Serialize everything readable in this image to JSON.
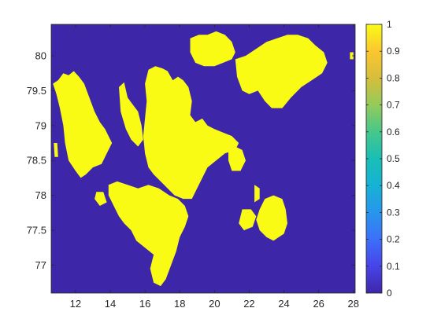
{
  "chart_data": {
    "type": "heatmap",
    "title": "",
    "xlabel": "",
    "ylabel": "",
    "xlim": [
      10.6,
      28.1
    ],
    "ylim": [
      76.6,
      80.45
    ],
    "x_ticks": [
      12,
      14,
      16,
      18,
      20,
      22,
      24,
      26,
      28
    ],
    "x_tick_labels": [
      "12",
      "14",
      "16",
      "18",
      "20",
      "22",
      "24",
      "26",
      "28"
    ],
    "y_ticks": [
      77,
      77.5,
      78,
      78.5,
      79,
      79.5,
      80
    ],
    "y_tick_labels": [
      "77",
      "77.5",
      "78",
      "78.5",
      "79",
      "79.5",
      "80"
    ],
    "colorbar": {
      "range": [
        0,
        1
      ],
      "ticks": [
        0,
        0.1,
        0.2,
        0.3,
        0.4,
        0.5,
        0.6,
        0.7,
        0.8,
        0.9,
        1
      ],
      "tick_labels": [
        "0",
        "0.1",
        "0.2",
        "0.3",
        "0.4",
        "0.5",
        "0.6",
        "0.7",
        "0.8",
        "0.9",
        "1"
      ],
      "colormap": "parula",
      "colormap_stops": [
        "#3e26a8",
        "#4744e8",
        "#3d6ff9",
        "#2796eb",
        "#16b2d5",
        "#18bfb5",
        "#47c78a",
        "#94ca5a",
        "#d6be3b",
        "#fbc630",
        "#f9fb15"
      ]
    },
    "value_colors": {
      "0": "#3e26a8",
      "1": "#f9fb15"
    },
    "grid": false,
    "legend": "none",
    "land_regions": [
      {
        "name": "",
        "value": 1,
        "lonlat": [
          [
            10.7,
            79.6
          ],
          [
            11.0,
            79.65
          ],
          [
            11.3,
            79.75
          ],
          [
            11.6,
            79.72
          ],
          [
            11.9,
            79.78
          ],
          [
            12.2,
            79.7
          ],
          [
            12.5,
            79.6
          ],
          [
            12.8,
            79.4
          ],
          [
            13.1,
            79.2
          ],
          [
            13.4,
            79.05
          ],
          [
            13.7,
            78.95
          ],
          [
            13.9,
            78.85
          ],
          [
            14.1,
            78.75
          ],
          [
            13.8,
            78.6
          ],
          [
            13.5,
            78.45
          ],
          [
            13.0,
            78.4
          ],
          [
            12.6,
            78.3
          ],
          [
            12.3,
            78.25
          ],
          [
            12.0,
            78.35
          ],
          [
            11.6,
            78.5
          ],
          [
            11.4,
            78.75
          ],
          [
            11.3,
            79.0
          ],
          [
            11.1,
            79.25
          ],
          [
            10.9,
            79.45
          ]
        ]
      },
      {
        "name": "",
        "value": 1,
        "lonlat": [
          [
            14.5,
            79.55
          ],
          [
            14.8,
            79.62
          ],
          [
            15.0,
            79.4
          ],
          [
            15.3,
            79.3
          ],
          [
            15.6,
            79.2
          ],
          [
            15.8,
            79.0
          ],
          [
            15.9,
            78.8
          ],
          [
            15.6,
            78.7
          ],
          [
            15.2,
            78.8
          ],
          [
            14.9,
            78.95
          ],
          [
            14.6,
            79.2
          ]
        ]
      },
      {
        "name": "",
        "value": 1,
        "lonlat": [
          [
            16.2,
            79.8
          ],
          [
            16.6,
            79.85
          ],
          [
            17.0,
            79.82
          ],
          [
            17.3,
            79.78
          ],
          [
            17.6,
            79.65
          ],
          [
            17.9,
            79.7
          ],
          [
            18.2,
            79.65
          ],
          [
            18.5,
            79.55
          ],
          [
            18.7,
            79.35
          ],
          [
            18.6,
            79.15
          ],
          [
            18.9,
            79.05
          ],
          [
            19.3,
            79.1
          ],
          [
            19.6,
            79.0
          ],
          [
            20.0,
            78.95
          ],
          [
            20.5,
            78.9
          ],
          [
            21.0,
            78.85
          ],
          [
            21.4,
            78.75
          ],
          [
            21.2,
            78.65
          ],
          [
            20.6,
            78.6
          ],
          [
            20.1,
            78.5
          ],
          [
            19.6,
            78.4
          ],
          [
            19.3,
            78.25
          ],
          [
            19.0,
            78.1
          ],
          [
            18.7,
            77.95
          ],
          [
            18.2,
            77.95
          ],
          [
            17.7,
            78.0
          ],
          [
            17.3,
            78.1
          ],
          [
            16.9,
            78.2
          ],
          [
            16.5,
            78.3
          ],
          [
            16.2,
            78.4
          ],
          [
            16.0,
            78.6
          ],
          [
            15.9,
            78.85
          ],
          [
            16.0,
            79.1
          ],
          [
            16.1,
            79.35
          ],
          [
            16.0,
            79.6
          ]
        ]
      },
      {
        "name": "",
        "value": 1,
        "lonlat": [
          [
            13.9,
            78.15
          ],
          [
            14.4,
            78.2
          ],
          [
            15.0,
            78.15
          ],
          [
            15.6,
            78.1
          ],
          [
            16.2,
            78.15
          ],
          [
            16.8,
            78.1
          ],
          [
            17.4,
            78.0
          ],
          [
            17.9,
            77.95
          ],
          [
            18.3,
            77.85
          ],
          [
            18.5,
            77.7
          ],
          [
            18.3,
            77.55
          ],
          [
            18.0,
            77.4
          ],
          [
            17.8,
            77.2
          ],
          [
            17.5,
            77.0
          ],
          [
            17.2,
            76.8
          ],
          [
            16.9,
            76.7
          ],
          [
            16.5,
            76.75
          ],
          [
            16.3,
            76.95
          ],
          [
            16.5,
            77.15
          ],
          [
            16.0,
            77.25
          ],
          [
            15.5,
            77.35
          ],
          [
            15.2,
            77.5
          ],
          [
            14.8,
            77.6
          ],
          [
            14.5,
            77.7
          ],
          [
            14.2,
            77.85
          ],
          [
            13.9,
            78.0
          ]
        ]
      },
      {
        "name": "",
        "value": 1,
        "lonlat": [
          [
            18.6,
            80.25
          ],
          [
            19.1,
            80.3
          ],
          [
            19.6,
            80.3
          ],
          [
            20.1,
            80.35
          ],
          [
            20.6,
            80.3
          ],
          [
            21.0,
            80.2
          ],
          [
            21.2,
            80.05
          ],
          [
            21.0,
            79.95
          ],
          [
            20.5,
            79.9
          ],
          [
            20.0,
            79.85
          ],
          [
            19.4,
            79.85
          ],
          [
            18.9,
            79.9
          ],
          [
            18.6,
            80.05
          ]
        ]
      },
      {
        "name": "",
        "value": 1,
        "lonlat": [
          [
            21.2,
            79.95
          ],
          [
            21.8,
            80.0
          ],
          [
            22.4,
            80.1
          ],
          [
            23.0,
            80.2
          ],
          [
            23.6,
            80.25
          ],
          [
            24.2,
            80.3
          ],
          [
            24.8,
            80.3
          ],
          [
            25.4,
            80.25
          ],
          [
            25.8,
            80.15
          ],
          [
            26.3,
            80.05
          ],
          [
            26.5,
            79.9
          ],
          [
            26.2,
            79.75
          ],
          [
            25.6,
            79.65
          ],
          [
            25.0,
            79.55
          ],
          [
            24.4,
            79.4
          ],
          [
            23.9,
            79.25
          ],
          [
            23.3,
            79.25
          ],
          [
            22.9,
            79.35
          ],
          [
            22.5,
            79.5
          ],
          [
            22.0,
            79.45
          ],
          [
            21.6,
            79.5
          ],
          [
            21.3,
            79.7
          ]
        ]
      },
      {
        "name": "",
        "value": 1,
        "lonlat": [
          [
            20.8,
            78.65
          ],
          [
            21.2,
            78.7
          ],
          [
            21.6,
            78.65
          ],
          [
            21.8,
            78.5
          ],
          [
            21.5,
            78.35
          ],
          [
            21.0,
            78.35
          ],
          [
            20.8,
            78.5
          ]
        ]
      },
      {
        "name": "",
        "value": 1,
        "lonlat": [
          [
            22.3,
            78.15
          ],
          [
            22.6,
            78.1
          ],
          [
            22.6,
            77.95
          ],
          [
            22.3,
            77.9
          ]
        ]
      },
      {
        "name": "",
        "value": 1,
        "lonlat": [
          [
            22.9,
            77.95
          ],
          [
            23.4,
            78.0
          ],
          [
            23.9,
            77.95
          ],
          [
            24.1,
            77.8
          ],
          [
            24.2,
            77.6
          ],
          [
            24.0,
            77.45
          ],
          [
            23.7,
            77.4
          ],
          [
            23.4,
            77.35
          ],
          [
            23.0,
            77.4
          ],
          [
            22.6,
            77.5
          ],
          [
            22.4,
            77.65
          ],
          [
            22.6,
            77.8
          ]
        ]
      },
      {
        "name": "",
        "value": 1,
        "lonlat": [
          [
            21.6,
            77.8
          ],
          [
            22.1,
            77.8
          ],
          [
            22.4,
            77.7
          ],
          [
            22.2,
            77.55
          ],
          [
            21.7,
            77.5
          ],
          [
            21.4,
            77.6
          ]
        ]
      },
      {
        "name": "",
        "value": 1,
        "lonlat": [
          [
            13.2,
            78.05
          ],
          [
            13.6,
            78.05
          ],
          [
            13.8,
            77.9
          ],
          [
            13.4,
            77.85
          ],
          [
            13.1,
            77.95
          ]
        ]
      },
      {
        "name": "",
        "value": 1,
        "lonlat": [
          [
            10.75,
            78.75
          ],
          [
            10.95,
            78.75
          ],
          [
            11.0,
            78.55
          ],
          [
            10.8,
            78.55
          ]
        ]
      },
      {
        "name": "",
        "value": 1,
        "lonlat": [
          [
            27.8,
            80.05
          ],
          [
            28.0,
            80.05
          ],
          [
            28.0,
            79.95
          ],
          [
            27.8,
            79.95
          ]
        ]
      }
    ]
  }
}
